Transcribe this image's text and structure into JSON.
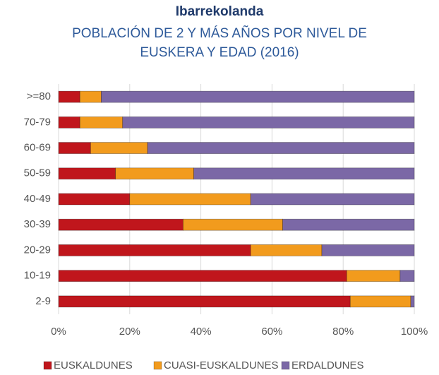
{
  "chart_data": {
    "type": "stacked_bar_horizontal",
    "title": "Ibarrekolanda",
    "subtitle": "POBLACIÓN DE 2 Y MÁS AÑOS POR NIVEL DE EUSKERA Y EDAD (2016)",
    "categories": [
      ">=80",
      "70-79",
      "60-69",
      "50-59",
      "40-49",
      "30-39",
      "20-29",
      "10-19",
      "2-9"
    ],
    "series": [
      {
        "name": "EUSKALDUNES",
        "color": "#c0161c",
        "values": [
          6,
          6,
          9,
          16,
          20,
          35,
          54,
          81,
          82
        ]
      },
      {
        "name": "CUASI-EUSKALDUNES",
        "color": "#f29b1d",
        "values": [
          6,
          12,
          16,
          22,
          34,
          28,
          20,
          15,
          17
        ]
      },
      {
        "name": "ERDALDUNES",
        "color": "#7b68a6",
        "values": [
          88,
          82,
          75,
          62,
          46,
          37,
          26,
          4,
          1
        ]
      }
    ],
    "xlim": [
      0,
      100
    ],
    "xticks": [
      {
        "value": 0,
        "label": "0%"
      },
      {
        "value": 20,
        "label": "20%"
      },
      {
        "value": 40,
        "label": "40%"
      },
      {
        "value": 60,
        "label": "60%"
      },
      {
        "value": 80,
        "label": "80%"
      },
      {
        "value": 100,
        "label": "100%"
      }
    ],
    "grid": true,
    "legend": "bottom"
  }
}
